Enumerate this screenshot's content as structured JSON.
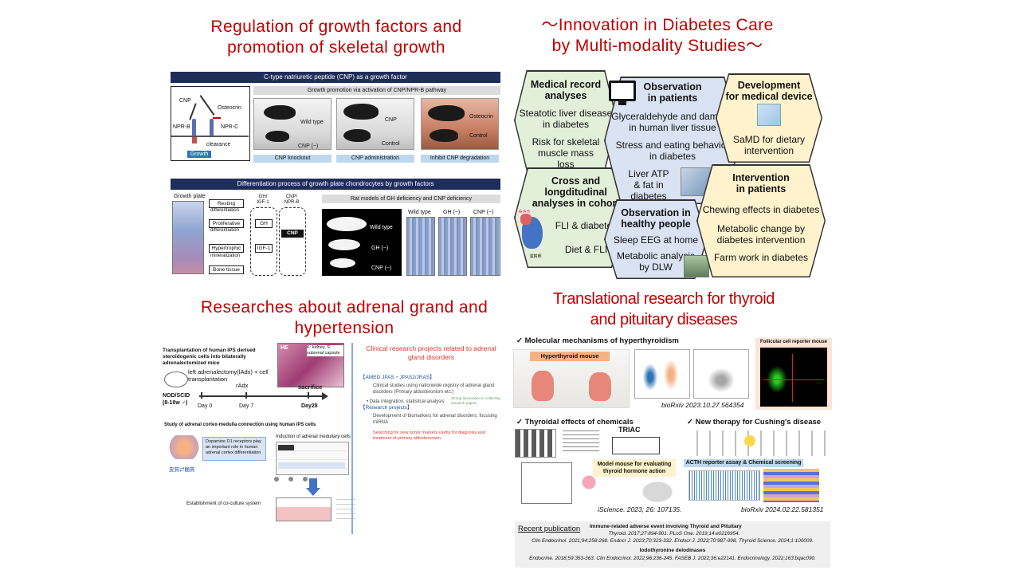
{
  "q1": {
    "title_line1": "Regulation of growth factors and",
    "title_line2": "promotion of skeletal growth",
    "banner1": "C-type natriuretic peptide (CNP) as a growth factor",
    "pathway": {
      "cnp": "CNP",
      "osteocrin": "Osteocrin",
      "nprb": "NPR-B",
      "nprc": "NPR-C",
      "clearance": "clearance",
      "growth": "Growth"
    },
    "growth_promotion": "Growth promotion via activation of CNP/NPR-B pathway",
    "photo_labels": {
      "p1a": "Wild type",
      "p1b": "CNP (−)",
      "p2a": "CNP",
      "p2b": "Control",
      "p3a": "Osteocrin",
      "p3b": "Control"
    },
    "panel_labels": [
      "CNP knockout",
      "CNP administration",
      "Inhibit CNP degradation"
    ],
    "banner2": "Differentiation process of growth plate chondrocytes by growth factors",
    "growth_plate": "Growth plate",
    "flow": {
      "resting": "Resting",
      "differentiation1": "differentiation",
      "proliferative": "Proliferative",
      "differentiation2": "differentiation",
      "hypertrophic": "Hypertrophic",
      "mineralization": "mineralization",
      "bone": "Bone tissue",
      "gh_igf": "GH/ IGF-1",
      "cnp_nprb": "CNP/ NPR-B",
      "gh": "GH",
      "igf": "IGF-1",
      "cnp": "CNP"
    },
    "rat_models": "Rat models of GH deficiency and CNP deficiency",
    "rat_labels": {
      "wt": "Wild type",
      "gh": "GH (−)",
      "cnp": "CNP (−)"
    },
    "histo_labels": [
      "Wild type",
      "GH (−)",
      "CNP (−)"
    ]
  },
  "q2": {
    "title_line1": "〜Innovation in Diabetes Care",
    "title_line2": "by Multi-modality  Studies〜",
    "hexes": {
      "medical": {
        "title": [
          "Medical record",
          "analyses"
        ],
        "lines": [
          "Steatotic liver disease in diabetes",
          "Risk for skeletal muscle mass loss"
        ]
      },
      "obs_patients": {
        "title": [
          "Observation",
          "in patients"
        ],
        "lines": [
          "Glyceraldehyde and damage in human liver tissue",
          "Stress and eating behavior in diabetes",
          "Liver ATP & fat in diabetes"
        ]
      },
      "device": {
        "title": [
          "Development",
          "for medical device"
        ],
        "lines": [
          "SaMD for dietary intervention"
        ]
      },
      "cohort": {
        "title": [
          "Cross and",
          "longditudinal",
          "analyses in cohort"
        ],
        "lines": [
          "FLI & diabetes",
          "Diet & FLI"
        ],
        "map_top": "長浜市",
        "map_bottom": "滋賀県"
      },
      "healthy": {
        "title": [
          "Observation in",
          "healthy people"
        ],
        "lines": [
          "Sleep EEG at home",
          "Metabolic analysis by DLW"
        ]
      },
      "intervention": {
        "title": [
          "Intervention",
          "in patients"
        ],
        "lines": [
          "Chewing effects in diabetes",
          "Metabolic change by diabetes intervention",
          "Farm work in diabetes"
        ]
      }
    }
  },
  "q3": {
    "title_line1": "Researches about adrenal grand and",
    "title_line2": "hypertension",
    "transplant_title": "Transplantation of human iPS derived steroidogenic cells into bilaterally adrenalectomized mice",
    "he": "HE",
    "he_note": "K: kidney, S: subrenal capsule",
    "surgery": "left adrenalectomy(lAdx) + cell transplantation",
    "nod": "NOD/SCID (8-10w ♂)",
    "radx": "rAdx",
    "sacrifice": "sacrifice",
    "days": [
      "Day 0",
      "Day 7",
      "Day28"
    ],
    "cortex_title": "Study of adrenal cortex-medulla connection using human iPS cells",
    "induction": "Induction of adrenal medullary cells",
    "dopamine": "Dopamine D1 receptors play an important role in human adrenal cortex differentiation",
    "cortex_med": "皮質⇄髄質",
    "coculture": "Establishment of co-culture system",
    "clinical_title": "Clinical research projects related to adrenal gland disorders",
    "amed": "【AMED  JPAS・JPAS2/JRAS】",
    "amed_text": "Clinical studies using nationwide registry of adrenal gland disorders (Primary aldosteronism etc.)",
    "data_int": "• Data integration, statistical analysis",
    "strong": "Strong association in collecting research papers",
    "projects": "【Research projects】",
    "projects_text": "Development of biomarkers for adrenal disorders, focusing miRNA",
    "searching": "Searching for new tumor markers useful for diagnosis and treatment of primary aldosteronism"
  },
  "q4": {
    "title_line1": "Translational research for thyroid",
    "title_line2": "and pituitary diseases",
    "mol": "✓  Molecular mechanisms of hyperthyroidism",
    "hyper_mouse": "Hyperthyroid mouse",
    "follicular": "Follicular cell reporter mouse",
    "biorxiv1": "bioRxiv 2023.10.27.564354",
    "thyroidal": "✓  Thyroidal effects of chemicals",
    "triac": "TRIAC",
    "model_mouse": "Model mouse for evaluating thyroid hormone action",
    "iscience": "iScience. 2023; 26: 107135.",
    "cushing": "✓  New therapy for Cushing's disease",
    "acth": "ACTH reporter assay & Chemical screening",
    "biorxiv2": "bioRxiv 2024.02.22.581351",
    "recent": "Recent publication",
    "immune_head": "Immune-related adverse event involving Thyroid and Pituitary",
    "immune_1": "Thyroid. 2017;27:894-901. PLoS One. 2019;14:e0216954.",
    "immune_2": "Clin Endocrinol. 2021;94:258-268. Endocr J. 2023;70:323-332.  Endocr J. 2023;70:987-998, Thyroid Science. 2024;1:100009.",
    "iodo_head": "Iodothyronine deiodinases",
    "iodo_1": "Endocrine. 2018;59:353-363. Clin Endocrinol. 2022;96:236-245. FASEB J. 2022;36:e22141. Endocrinology. 2022;163:bqac090."
  },
  "colors": {
    "title_red": "#c00000",
    "navy": "#1f2d5a",
    "hex_green": "#e2efd9",
    "hex_blue": "#dae3f3",
    "hex_yellow": "#fff2cc"
  }
}
